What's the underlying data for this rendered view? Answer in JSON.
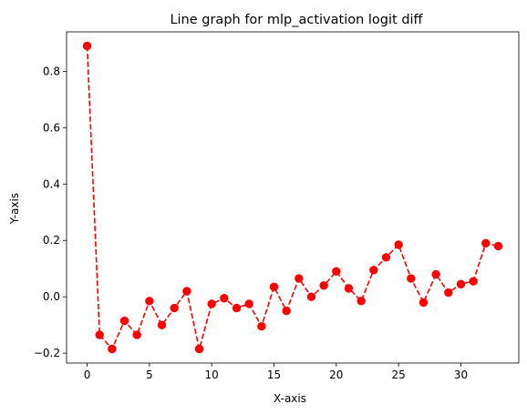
{
  "chart_data": {
    "type": "line",
    "title": "Line graph for mlp_activation logit diff",
    "xlabel": "X-axis",
    "ylabel": "Y-axis",
    "xlim": [
      -1.65,
      34.65
    ],
    "ylim": [
      -0.235,
      0.94
    ],
    "xticks": [
      0,
      5,
      10,
      15,
      20,
      25,
      30
    ],
    "yticks": [
      -0.2,
      0.0,
      0.2,
      0.4,
      0.6,
      0.8
    ],
    "ytick_labels": [
      "−0.2",
      "0.0",
      "0.2",
      "0.4",
      "0.6",
      "0.8"
    ],
    "grid": false,
    "series": [
      {
        "color": "#ff0000",
        "line_style": "dashed",
        "marker": "circle",
        "x": [
          0,
          1,
          2,
          3,
          4,
          5,
          6,
          7,
          8,
          9,
          10,
          11,
          12,
          13,
          14,
          15,
          16,
          17,
          18,
          19,
          20,
          21,
          22,
          23,
          24,
          25,
          26,
          27,
          28,
          29,
          30,
          31,
          32,
          33
        ],
        "y": [
          0.89,
          -0.135,
          -0.185,
          -0.085,
          -0.135,
          -0.015,
          -0.1,
          -0.04,
          0.02,
          -0.185,
          -0.025,
          -0.005,
          -0.04,
          -0.025,
          -0.105,
          0.035,
          -0.05,
          0.065,
          0.0,
          0.04,
          0.09,
          0.03,
          -0.015,
          0.095,
          0.14,
          0.185,
          0.065,
          -0.02,
          0.08,
          0.015,
          0.045,
          0.055,
          0.19,
          0.18
        ]
      }
    ]
  }
}
